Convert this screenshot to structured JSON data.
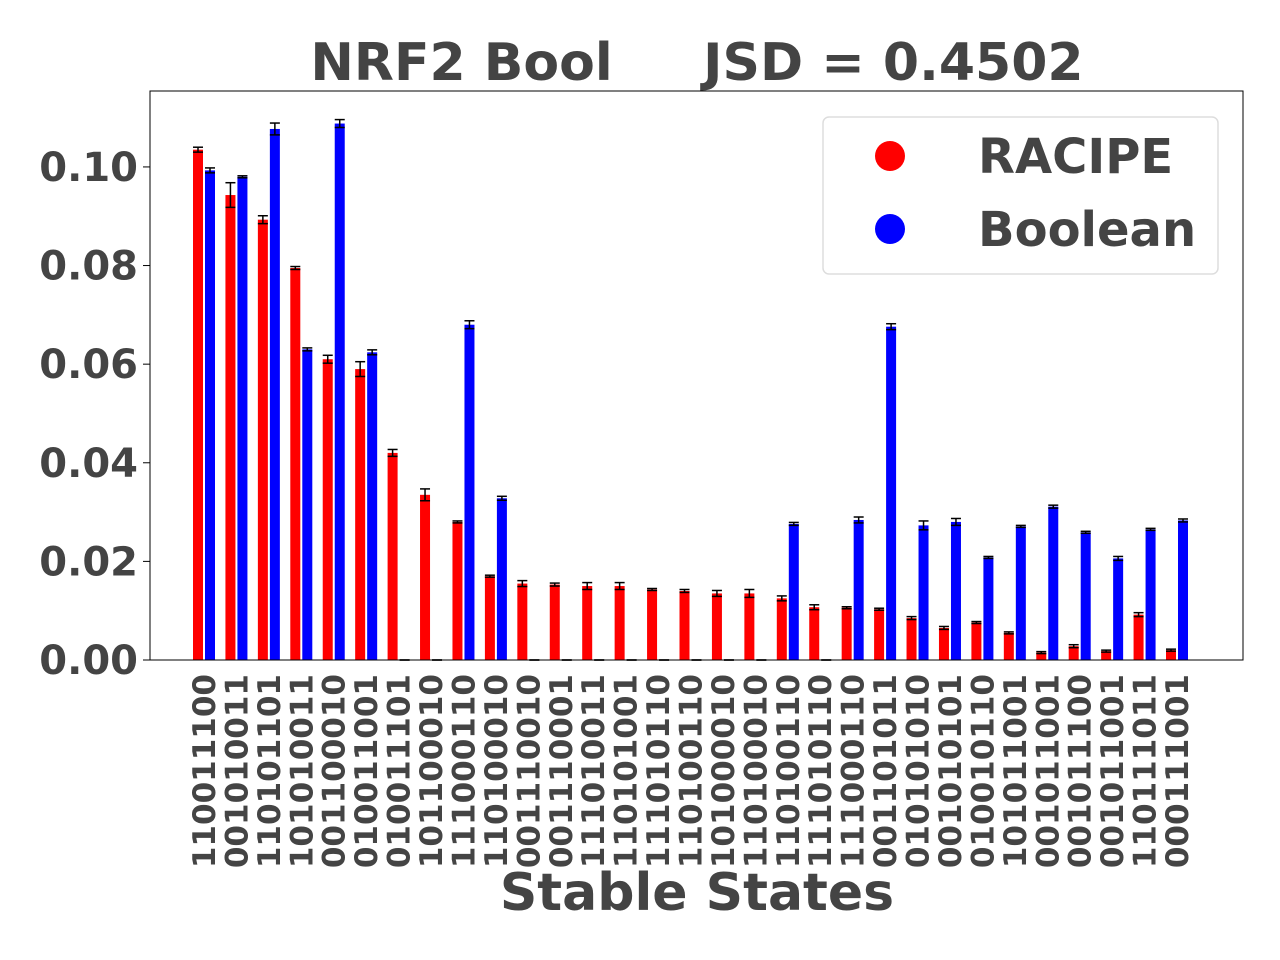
{
  "chart_data": {
    "type": "bar",
    "title": "NRF2 Bool     JSD = 0.4502",
    "xlabel": "Stable States",
    "categories": [
      "110011100",
      "001010011",
      "110101101",
      "101010011",
      "001100010",
      "010011001",
      "010011101",
      "101100010",
      "111000110",
      "110100010",
      "001110010",
      "001110001",
      "111010011",
      "110101001",
      "111010110",
      "110100110",
      "101000010",
      "110100010",
      "110100110",
      "111010110",
      "111000110",
      "001101011",
      "010101010",
      "001010101",
      "010010110",
      "101011001",
      "001011001",
      "001011100",
      "001011001",
      "110111011",
      "000111001"
    ],
    "series": [
      {
        "name": "RACIPE",
        "color": "#ff0000",
        "values": [
          0.1035,
          0.0943,
          0.0893,
          0.0795,
          0.061,
          0.059,
          0.042,
          0.0335,
          0.028,
          0.017,
          0.0155,
          0.0153,
          0.015,
          0.015,
          0.0143,
          0.014,
          0.0135,
          0.0135,
          0.0125,
          0.0107,
          0.0106,
          0.0103,
          0.0085,
          0.0065,
          0.0076,
          0.0055,
          0.0015,
          0.0028,
          0.0018,
          0.0092,
          0.002
        ],
        "errors": [
          0.0005,
          0.0025,
          0.0008,
          0.0003,
          0.0008,
          0.0015,
          0.0007,
          0.0012,
          0.0002,
          0.0002,
          0.0006,
          0.0003,
          0.0007,
          0.0007,
          0.0002,
          0.0003,
          0.0006,
          0.0008,
          0.0005,
          0.0005,
          0.0002,
          0.0002,
          0.0003,
          0.0003,
          0.0002,
          0.0002,
          0.0002,
          0.0003,
          0.0002,
          0.0004,
          0.0002
        ]
      },
      {
        "name": "Boolean",
        "color": "#0000ff",
        "values": [
          0.0993,
          0.098,
          0.1077,
          0.063,
          0.1088,
          0.0624,
          0,
          0,
          0.068,
          0.0328,
          0,
          0,
          0,
          0,
          0,
          0,
          0,
          0,
          0.0276,
          0,
          0.0284,
          0.0676,
          0.0273,
          0.028,
          0.0208,
          0.0271,
          0.0311,
          0.0259,
          0.0206,
          0.0265,
          0.0283
        ],
        "errors": [
          0.0005,
          0.0002,
          0.0012,
          0.0003,
          0.0008,
          0.0005,
          0,
          0,
          0.0008,
          0.0004,
          0,
          0,
          0,
          0,
          0,
          0,
          0,
          0,
          0.0003,
          0,
          0.0006,
          0.0006,
          0.0009,
          0.0007,
          0.0002,
          0.0002,
          0.0003,
          0.0002,
          0.0004,
          0.0002,
          0.0003
        ]
      }
    ],
    "ylim": [
      0,
      0.1154
    ],
    "yticks": [
      {
        "value": 0,
        "label": "0.00"
      },
      {
        "value": 0.02,
        "label": "0.02"
      },
      {
        "value": 0.04,
        "label": "0.04"
      },
      {
        "value": 0.06,
        "label": "0.06"
      },
      {
        "value": 0.08,
        "label": "0.08"
      },
      {
        "value": 0.1,
        "label": "0.10"
      }
    ],
    "legend": "upper right"
  }
}
